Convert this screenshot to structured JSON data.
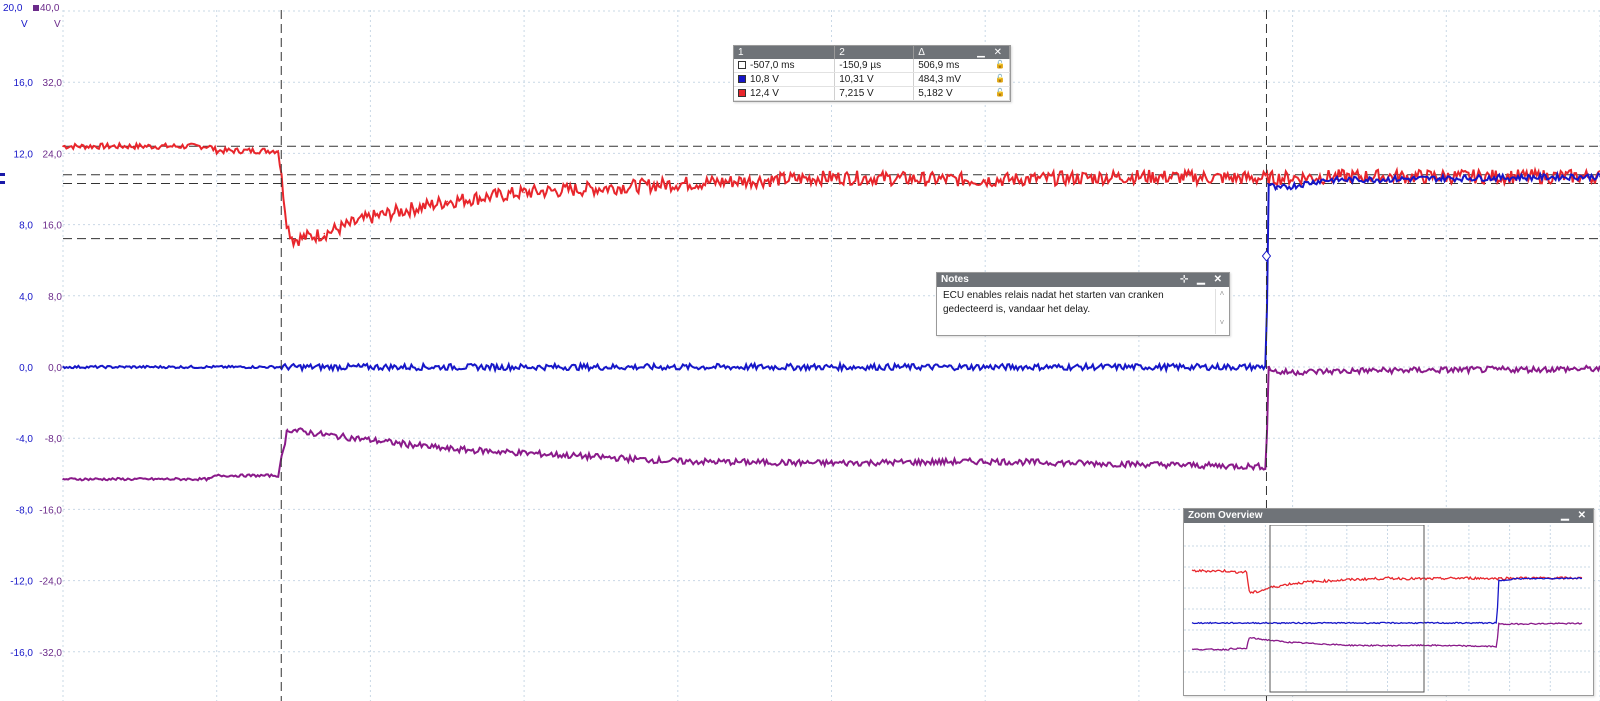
{
  "scale_headers": {
    "ch_a": {
      "value": "20,0",
      "unit": "V"
    },
    "ch_b": {
      "value": "40,0",
      "unit": "V"
    }
  },
  "colors": {
    "channel_a": "#e8262c",
    "channel_b": "#1616c8",
    "channel_c": "#8a1a8a",
    "scale_a_label": "#1616c8",
    "scale_b_label": "#6b2a8a",
    "grid": "#c9d8e6",
    "cursor": "#333333"
  },
  "measurements": {
    "headers": [
      "1",
      "2",
      "Δ"
    ],
    "rows": [
      {
        "swatch": "white",
        "c1": "-507,0 ms",
        "c2": "-150,9 µs",
        "delta": "506,9 ms"
      },
      {
        "swatch": "blue",
        "c1": "10,8 V",
        "c2": "10,31 V",
        "delta": "484,3 mV"
      },
      {
        "swatch": "red",
        "c1": "12,4 V",
        "c2": "7,215 V",
        "delta": "5,182 V"
      }
    ]
  },
  "notes": {
    "title": "Notes",
    "text_line1": "ECU enables relais nadat het starten van cranken",
    "text_line2": "gedecteerd is, vandaar het delay."
  },
  "zoom_overview": {
    "title": "Zoom Overview"
  },
  "chart_data": {
    "type": "line",
    "y_axis_a": {
      "unit": "V",
      "range": [
        -20,
        20
      ],
      "ticks": [
        "16,0",
        "12,0",
        "8,0",
        "4,0",
        "0,0",
        "-4,0",
        "-8,0",
        "-12,0",
        "-16,0"
      ]
    },
    "y_axis_b": {
      "unit": "V",
      "range": [
        -40,
        40
      ],
      "ticks": [
        "32,0",
        "24,0",
        "16,0",
        "8,0",
        "0,0",
        "-8,0",
        "-16,0",
        "-24,0",
        "-32,0"
      ]
    },
    "x_divisions": 10,
    "grid": true,
    "cursors": {
      "cursor1_div": 1.42,
      "cursor2_div": 7.83
    },
    "horizontal_rulers_v": [
      12.4,
      10.8,
      10.31,
      7.215
    ],
    "series": [
      {
        "axis": "b",
        "color": "#e8262c",
        "points": [
          [
            0,
            24.8
          ],
          [
            0.95,
            24.8
          ],
          [
            1.0,
            24.3
          ],
          [
            1.4,
            24.3
          ],
          [
            1.46,
            15.8
          ],
          [
            1.5,
            14.3
          ],
          [
            1.7,
            15.0
          ],
          [
            2.0,
            16.8
          ],
          [
            2.5,
            18.6
          ],
          [
            3.0,
            19.6
          ],
          [
            4.0,
            20.6
          ],
          [
            5.0,
            21.3
          ],
          [
            6.0,
            21.0
          ],
          [
            7.0,
            21.4
          ],
          [
            7.83,
            21.2
          ],
          [
            8.3,
            21.4
          ],
          [
            10.0,
            21.4
          ]
        ]
      },
      {
        "axis": "a",
        "color": "#1616c8",
        "points": [
          [
            0,
            0.0
          ],
          [
            7.83,
            0.0
          ],
          [
            7.84,
            10.3
          ],
          [
            7.9,
            10.0
          ],
          [
            8.2,
            10.5
          ],
          [
            9.0,
            10.6
          ],
          [
            10.0,
            10.7
          ]
        ]
      },
      {
        "axis": "a",
        "color": "#8a1a8a",
        "points": [
          [
            0,
            -6.3
          ],
          [
            0.95,
            -6.3
          ],
          [
            1.0,
            -6.1
          ],
          [
            1.4,
            -6.1
          ],
          [
            1.46,
            -3.5
          ],
          [
            1.7,
            -3.8
          ],
          [
            2.5,
            -4.6
          ],
          [
            4.0,
            -5.3
          ],
          [
            5.0,
            -5.4
          ],
          [
            6.0,
            -5.3
          ],
          [
            7.83,
            -5.6
          ],
          [
            7.84,
            0.0
          ],
          [
            7.9,
            -0.3
          ],
          [
            8.5,
            -0.2
          ],
          [
            10.0,
            -0.1
          ]
        ]
      }
    ]
  }
}
